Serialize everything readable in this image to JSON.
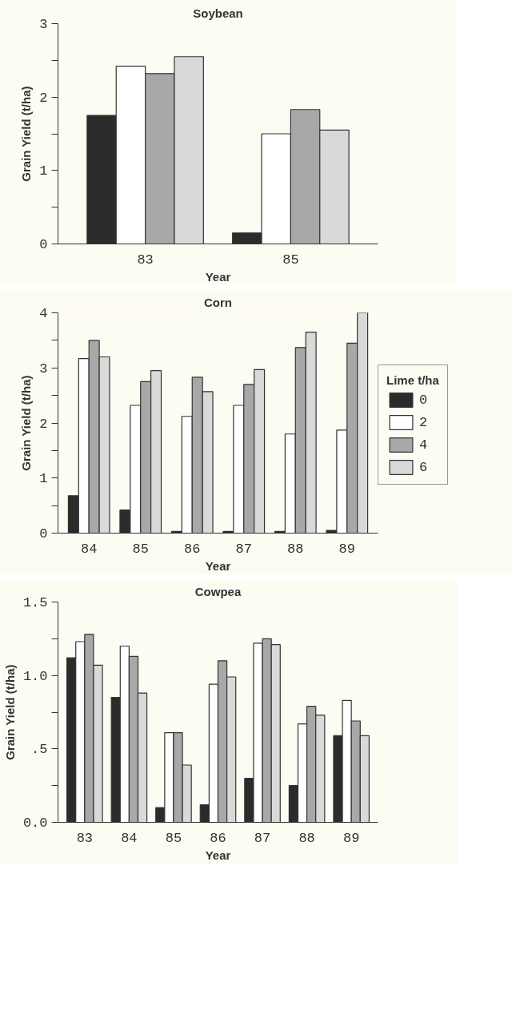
{
  "chart_data": [
    {
      "type": "bar",
      "title": "Soybean",
      "xlabel": "Year",
      "ylabel": "Grain Yield (t/ha)",
      "categories": [
        "83",
        "85"
      ],
      "ylim": [
        0,
        3
      ],
      "yticks": [
        0,
        {
          "value": 0.5,
          "label": null
        },
        1,
        {
          "value": 1.5,
          "label": null
        },
        2,
        {
          "value": 2.5,
          "label": null
        },
        3
      ],
      "grid": false,
      "legend": false,
      "series": [
        {
          "color": "#2b2b2b",
          "values": [
            1.75,
            0.15
          ]
        },
        {
          "color": "#ffffff",
          "values": [
            2.42,
            1.5
          ]
        },
        {
          "color": "#a8a8a8",
          "values": [
            2.32,
            1.83
          ]
        },
        {
          "color": "#d9d9d9",
          "values": [
            2.55,
            1.55
          ]
        }
      ]
    },
    {
      "type": "bar",
      "title": "Corn",
      "xlabel": "Year",
      "ylabel": "Grain Yield (t/ha)",
      "categories": [
        "84",
        "85",
        "86",
        "87",
        "88",
        "89"
      ],
      "ylim": [
        0,
        4
      ],
      "yticks": [
        0,
        {
          "value": 0.5,
          "label": null
        },
        1,
        {
          "value": 1.5,
          "label": null
        },
        2,
        {
          "value": 2.5,
          "label": null
        },
        3,
        {
          "value": 3.5,
          "label": null
        },
        4
      ],
      "grid": false,
      "legend": "right",
      "legend_title": "Lime t/ha",
      "series": [
        {
          "name": "0",
          "color": "#2b2b2b",
          "values": [
            0.68,
            0.42,
            0.03,
            0.03,
            0.03,
            0.05
          ]
        },
        {
          "name": "2",
          "color": "#ffffff",
          "values": [
            3.17,
            2.32,
            2.12,
            2.32,
            1.8,
            1.87
          ]
        },
        {
          "name": "4",
          "color": "#a8a8a8",
          "values": [
            3.5,
            2.75,
            2.83,
            2.7,
            3.37,
            3.45
          ]
        },
        {
          "name": "6",
          "color": "#d9d9d9",
          "values": [
            3.2,
            2.95,
            2.57,
            2.97,
            3.65,
            4.0
          ]
        }
      ]
    },
    {
      "type": "bar",
      "title": "Cowpea",
      "xlabel": "Year",
      "ylabel": "Grain Yield (t/ha)",
      "categories": [
        "83",
        "84",
        "85",
        "86",
        "87",
        "88",
        "89"
      ],
      "ylim": [
        0,
        1.5
      ],
      "yticks": [
        {
          "value": 0,
          "label": "0.0"
        },
        {
          "value": 0.25,
          "label": null
        },
        {
          "value": 0.5,
          "label": ".5"
        },
        {
          "value": 0.75,
          "label": null
        },
        {
          "value": 1,
          "label": "1.0"
        },
        {
          "value": 1.25,
          "label": null
        },
        {
          "value": 1.5,
          "label": "1.5"
        }
      ],
      "grid": false,
      "legend": false,
      "series": [
        {
          "color": "#2b2b2b",
          "values": [
            1.12,
            0.85,
            0.1,
            0.12,
            0.3,
            0.25,
            0.59
          ]
        },
        {
          "color": "#ffffff",
          "values": [
            1.23,
            1.2,
            0.61,
            0.94,
            1.22,
            0.67,
            0.83
          ]
        },
        {
          "color": "#a8a8a8",
          "values": [
            1.28,
            1.13,
            0.61,
            1.1,
            1.25,
            0.79,
            0.69
          ]
        },
        {
          "color": "#d9d9d9",
          "values": [
            1.07,
            0.88,
            0.39,
            0.99,
            1.21,
            0.73,
            0.59
          ]
        }
      ]
    }
  ]
}
